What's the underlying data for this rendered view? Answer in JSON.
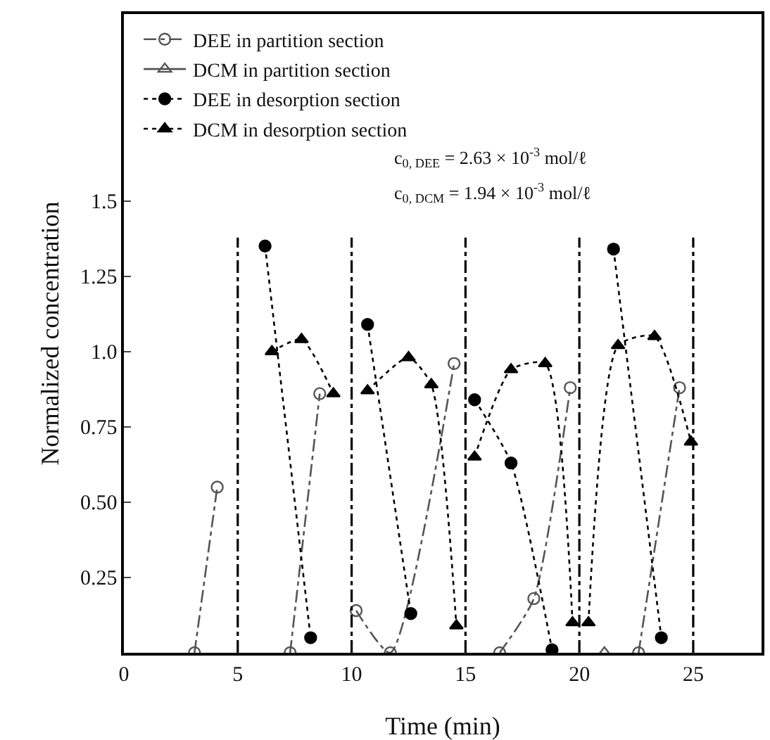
{
  "chart_data": {
    "type": "line",
    "xlabel": "Time (min)",
    "ylabel": "Normalized concentration",
    "xlim": [
      0,
      28
    ],
    "ylim": [
      0,
      2.12
    ],
    "xticks": [
      0,
      5,
      10,
      15,
      20,
      25
    ],
    "yticks": [
      {
        "value": 0.25,
        "label": "0.25"
      },
      {
        "value": 0.5,
        "label": "0.50"
      },
      {
        "value": 0.75,
        "label": "0.75"
      },
      {
        "value": 1.0,
        "label": "1.0"
      },
      {
        "value": 1.25,
        "label": "1.25"
      },
      {
        "value": 1.5,
        "label": "1.5"
      }
    ],
    "grid": false,
    "legend": "top left",
    "series": [
      {
        "name": "DEE in partition section",
        "color": "#555555",
        "marker": "circle",
        "line_style": "dashed",
        "x": [
          3.1,
          4.1,
          5,
          7.3,
          8.6,
          10,
          10.2,
          11.7,
          14.5,
          15,
          16.5,
          18.0,
          19.6,
          20,
          22.6,
          24.4
        ],
        "values": [
          0,
          0.55,
          null,
          0,
          0.86,
          null,
          0.14,
          0,
          0.96,
          null,
          0,
          0.18,
          0.88,
          null,
          0,
          0.88
        ]
      },
      {
        "name": "DCM in partition section",
        "color": "#555555",
        "marker": "triangle",
        "line_style": "solid",
        "x": [
          21.1
        ],
        "values": [
          0
        ]
      },
      {
        "name": "DEE in desorption section",
        "color": "#000000",
        "marker": "circle",
        "line_style": "dotted",
        "x": [
          6.2,
          8.2,
          10,
          10.7,
          12.6,
          15,
          15.4,
          17.0,
          18.8,
          20,
          21.5,
          23.6
        ],
        "values": [
          1.35,
          0.05,
          null,
          1.09,
          0.13,
          null,
          0.84,
          0.63,
          0.01,
          null,
          1.34,
          0.05
        ]
      },
      {
        "name": "DCM in desorption section",
        "color": "#000000",
        "marker": "triangle",
        "line_style": "dotted",
        "x": [
          6.5,
          7.8,
          9.2,
          10,
          10.7,
          12.5,
          13.5,
          14.6,
          15,
          15.4,
          17.0,
          18.5,
          19.7,
          20,
          20.4,
          21.7,
          23.3,
          24.9
        ],
        "values": [
          1.0,
          1.04,
          0.86,
          null,
          0.87,
          0.98,
          0.89,
          0.09,
          null,
          0.65,
          0.94,
          0.96,
          0.1,
          null,
          0.1,
          1.02,
          1.05,
          0.7
        ]
      }
    ],
    "ref_lines": [
      {
        "axis": "x",
        "value": 5
      },
      {
        "axis": "x",
        "value": 10
      },
      {
        "axis": "x",
        "value": 15
      },
      {
        "axis": "x",
        "value": 20
      },
      {
        "axis": "x",
        "value": 25
      }
    ],
    "annotations": [
      "c$_{0, DEE}$ = 2.63 × 10$^{-3}$ mol/ℓ",
      "c$_{0, DCM}$ = 1.94 × 10$^{-3}$ mol/ℓ"
    ]
  }
}
